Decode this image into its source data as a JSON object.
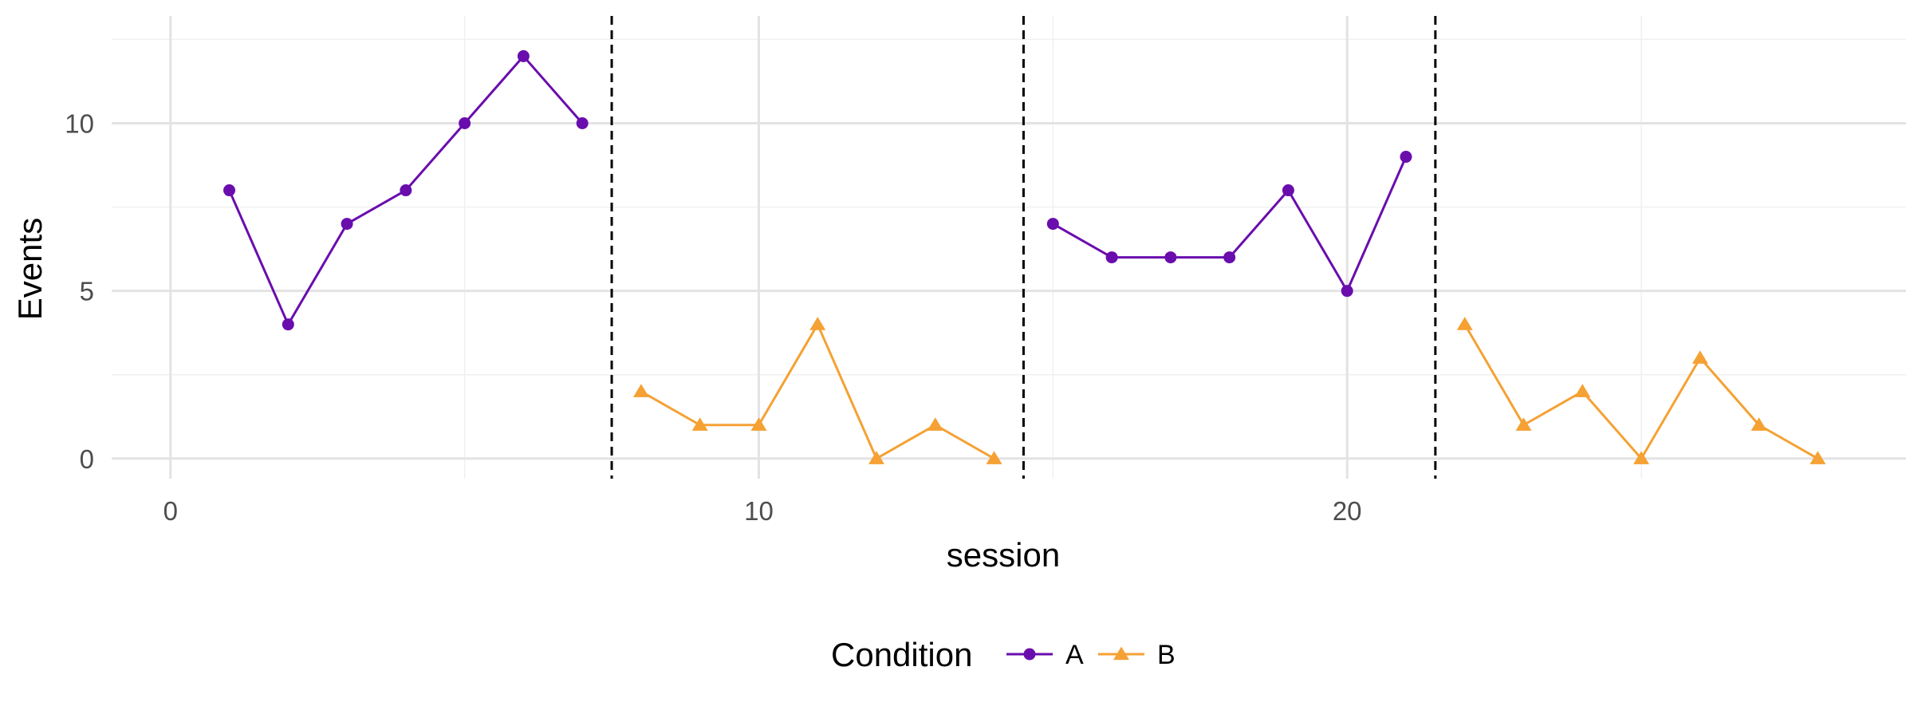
{
  "chart_data": {
    "type": "line",
    "xlabel": "session",
    "ylabel": "Events",
    "xlim": [
      -1,
      29.5
    ],
    "ylim": [
      -0.6,
      13.2
    ],
    "x_ticks": [
      0,
      10,
      20
    ],
    "x_minor_ticks": [
      5,
      15,
      25
    ],
    "y_ticks": [
      0,
      5,
      10
    ],
    "y_minor_ticks": [
      2.5,
      7.5,
      12.5
    ],
    "grid": true,
    "phase_changes": [
      7.5,
      14.5,
      21.5
    ],
    "legend": {
      "title": "Condition",
      "position": "bottom",
      "entries": [
        {
          "label": "A",
          "color": "#6a0dad",
          "marker": "circle"
        },
        {
          "label": "B",
          "color": "#f5a133",
          "marker": "triangle"
        }
      ]
    },
    "series": [
      {
        "name": "A",
        "phase": 1,
        "color": "#6a0dad",
        "marker": "circle",
        "x": [
          1,
          2,
          3,
          4,
          5,
          6,
          7
        ],
        "y": [
          8,
          4,
          7,
          8,
          10,
          12,
          10
        ]
      },
      {
        "name": "B",
        "phase": 2,
        "color": "#f5a133",
        "marker": "triangle",
        "x": [
          8,
          9,
          10,
          11,
          12,
          13,
          14
        ],
        "y": [
          2,
          1,
          1,
          4,
          0,
          1,
          0
        ]
      },
      {
        "name": "A",
        "phase": 3,
        "color": "#6a0dad",
        "marker": "circle",
        "x": [
          15,
          16,
          17,
          18,
          19,
          20,
          21
        ],
        "y": [
          7,
          6,
          6,
          6,
          8,
          5,
          9
        ]
      },
      {
        "name": "B",
        "phase": 4,
        "color": "#f5a133",
        "marker": "triangle",
        "x": [
          22,
          23,
          24,
          25,
          26,
          27,
          28
        ],
        "y": [
          4,
          1,
          2,
          0,
          3,
          1,
          0
        ]
      }
    ]
  }
}
